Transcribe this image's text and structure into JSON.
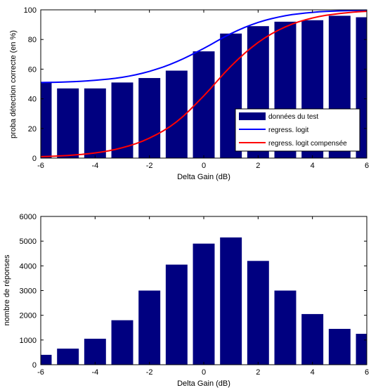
{
  "colors": {
    "bar": "#000080",
    "logit": "#0000ff",
    "logit_comp": "#ff0000",
    "axis": "#000000",
    "background": "#ffffff"
  },
  "chart_data": [
    {
      "type": "bar",
      "xlabel": "Delta Gain (dB)",
      "ylabel": "proba détection correcte (en %)",
      "xlim": [
        -6,
        6
      ],
      "ylim": [
        0,
        100
      ],
      "xticks": [
        -6,
        -4,
        -2,
        0,
        2,
        4,
        6
      ],
      "yticks": [
        0,
        20,
        40,
        60,
        80,
        100
      ],
      "grid": false,
      "legend_position": "bottom-right",
      "bars": {
        "name": "données du test",
        "x": [
          -6,
          -5,
          -4,
          -3,
          -2,
          -1,
          0,
          1,
          2,
          3,
          4,
          5,
          6
        ],
        "values": [
          51,
          47,
          47,
          51,
          54,
          59,
          72,
          84,
          89,
          92,
          93,
          96,
          95
        ]
      },
      "lines": [
        {
          "name": "regress. logit",
          "x": [
            -6,
            -5,
            -4,
            -3,
            -2,
            -1,
            0,
            1,
            2,
            3,
            4,
            5,
            6
          ],
          "values": [
            51,
            51.4,
            52.5,
            54.5,
            58.5,
            65,
            74,
            84,
            91.5,
            96,
            98.3,
            99.3,
            99.7
          ]
        },
        {
          "name": "regress. logit compensée",
          "x": [
            -6,
            -5,
            -4,
            -3,
            -2,
            -1,
            0,
            1,
            2,
            3,
            4,
            5,
            6
          ],
          "values": [
            1,
            1.8,
            3.5,
            7,
            13.5,
            24.5,
            42,
            62,
            78,
            88.5,
            94.5,
            97.5,
            99
          ]
        }
      ]
    },
    {
      "type": "bar",
      "xlabel": "Delta Gain (dB)",
      "ylabel": "nombre de réponses",
      "xlim": [
        -6,
        6
      ],
      "ylim": [
        0,
        6000
      ],
      "xticks": [
        -6,
        -4,
        -2,
        0,
        2,
        4,
        6
      ],
      "yticks": [
        0,
        1000,
        2000,
        3000,
        4000,
        5000,
        6000
      ],
      "grid": false,
      "x": [
        -6,
        -5,
        -4,
        -3,
        -2,
        -1,
        0,
        1,
        2,
        3,
        4,
        5,
        6
      ],
      "values": [
        400,
        650,
        1050,
        1800,
        3000,
        4050,
        4900,
        5150,
        4200,
        3000,
        2050,
        1450,
        1250
      ]
    }
  ]
}
